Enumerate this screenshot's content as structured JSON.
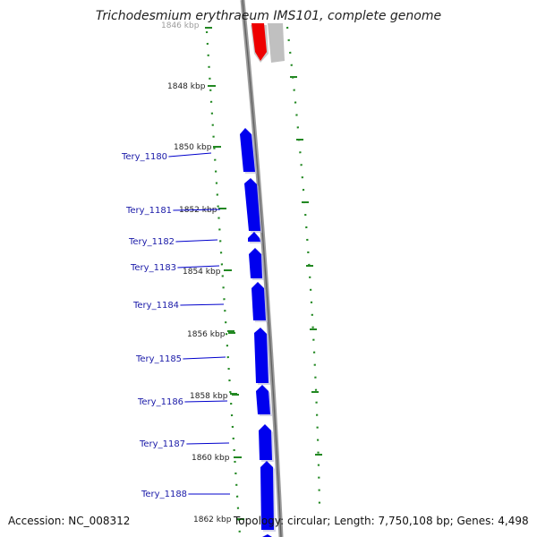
{
  "title": "Trichodesmium erythraeum IMS101, complete genome",
  "colors": {
    "cds_forward": "#0000ee",
    "cds_other": "#ee0000",
    "feature_gray": "#c0c0c0",
    "backbone": "#888888",
    "gc_skew": "#228822",
    "label_line": "#0000cc"
  },
  "ticks": [
    "1846 kbp",
    "1848 kbp",
    "1850 kbp",
    "1852 kbp",
    "1854 kbp",
    "1856 kbp",
    "1858 kbp",
    "1860 kbp",
    "1862 kbp"
  ],
  "genes": [
    "Tery_1180",
    "Tery_1181",
    "Tery_1182",
    "Tery_1183",
    "Tery_1184",
    "Tery_1185",
    "Tery_1186",
    "Tery_1187",
    "Tery_1188"
  ],
  "footer": {
    "accession": "Accession: NC_008312",
    "topology": "Topology: circular; Length: 7,750,108 bp; Genes: 4,498"
  }
}
